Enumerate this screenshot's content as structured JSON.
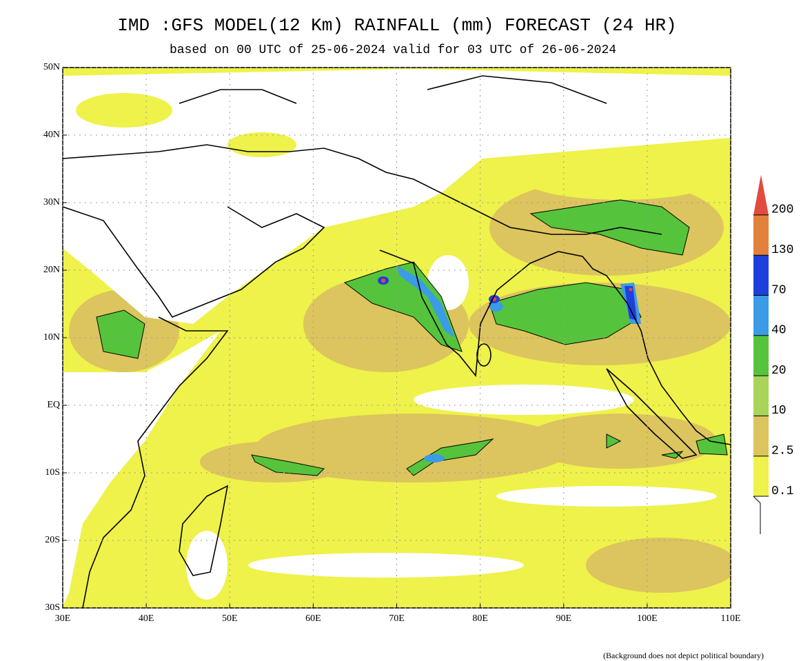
{
  "header": {
    "title": "IMD :GFS MODEL(12 Km) RAINFALL (mm) FORECAST (24 HR)",
    "subtitle": "based on 00 UTC of 25-06-2024 valid for 03 UTC of 26-06-2024"
  },
  "map": {
    "lon_range": [
      30,
      110
    ],
    "lat_range": [
      -30,
      50
    ],
    "lon_ticks": [
      {
        "value": 30,
        "label": "30E"
      },
      {
        "value": 40,
        "label": "40E"
      },
      {
        "value": 50,
        "label": "50E"
      },
      {
        "value": 60,
        "label": "60E"
      },
      {
        "value": 70,
        "label": "70E"
      },
      {
        "value": 80,
        "label": "80E"
      },
      {
        "value": 90,
        "label": "90E"
      },
      {
        "value": 100,
        "label": "100E"
      },
      {
        "value": 110,
        "label": "110E"
      }
    ],
    "lat_ticks": [
      {
        "value": 50,
        "label": "50N"
      },
      {
        "value": 40,
        "label": "40N"
      },
      {
        "value": 30,
        "label": "30N"
      },
      {
        "value": 20,
        "label": "20N"
      },
      {
        "value": 10,
        "label": "10N"
      },
      {
        "value": 0,
        "label": "EQ"
      },
      {
        "value": -10,
        "label": "10S"
      },
      {
        "value": -20,
        "label": "20S"
      },
      {
        "value": -30,
        "label": "30S"
      }
    ],
    "grid": true
  },
  "legend": {
    "levels": [
      0.1,
      2.5,
      10,
      20,
      40,
      70,
      130,
      200
    ],
    "colors": [
      "#eef24a",
      "#dcc45e",
      "#a8d45a",
      "#55c43c",
      "#3c9be6",
      "#1f3fdc",
      "#e3813c",
      "#e24b3e"
    ]
  },
  "footer": {
    "note": "(Background does not depict political boundary)"
  }
}
